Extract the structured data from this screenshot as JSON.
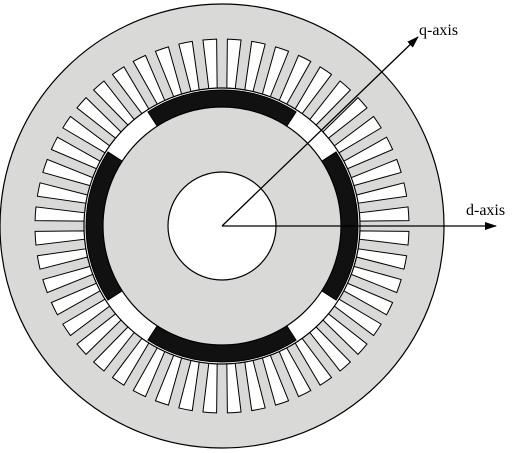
{
  "figure": {
    "labels": {
      "q_axis": "q-axis",
      "d_axis": "d-axis"
    },
    "slot_count": 48,
    "magnet_count": 4,
    "colors": {
      "stator": "#d9d9d7",
      "rotor": "#d9d9d7",
      "magnet": "#111111",
      "slot": "#ffffff",
      "outline": "#000000"
    }
  }
}
